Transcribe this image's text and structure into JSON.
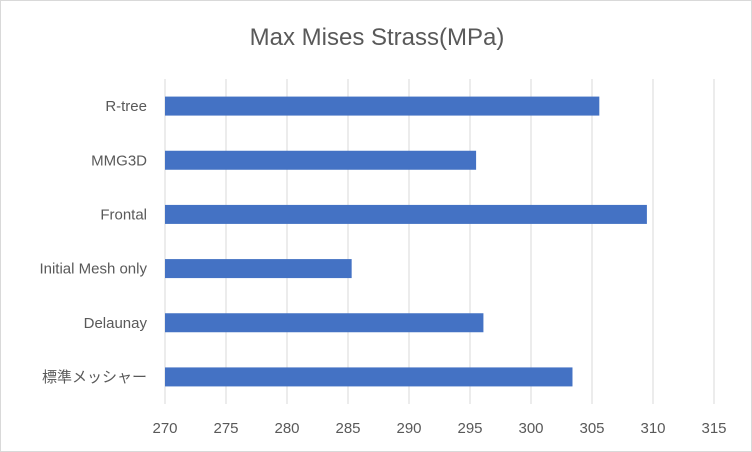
{
  "chart_data": {
    "type": "bar",
    "orientation": "horizontal",
    "title": "Max Mises Strass(MPa)",
    "categories": [
      "R-tree",
      "MMG3D",
      "Frontal",
      "Initial Mesh only",
      "Delaunay",
      "標準メッシャー"
    ],
    "values": [
      305.6,
      295.5,
      309.5,
      285.3,
      296.1,
      303.4
    ],
    "xlim": [
      270,
      315
    ],
    "xticks": [
      270,
      275,
      280,
      285,
      290,
      295,
      300,
      305,
      310,
      315
    ],
    "xlabel": "",
    "ylabel": "",
    "grid": "vertical",
    "legend": "none",
    "colors": {
      "bar": "#4472c4",
      "grid": "#d9d9d9",
      "text": "#595959"
    }
  }
}
